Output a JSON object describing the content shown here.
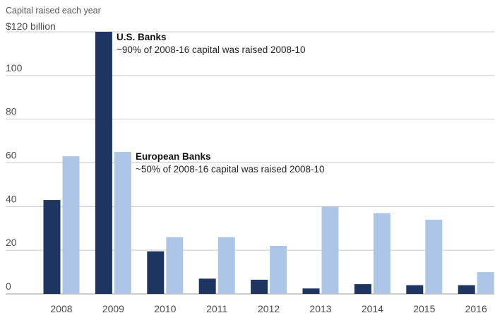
{
  "chart_data": {
    "type": "bar",
    "caption": "Capital raised each year",
    "y_top_label": "$120 billion",
    "categories": [
      "2008",
      "2009",
      "2010",
      "2011",
      "2012",
      "2013",
      "2014",
      "2015",
      "2016"
    ],
    "series": [
      {
        "name": "U.S. Banks",
        "color": "#1f3561",
        "values": [
          43,
          120,
          19.5,
          7,
          6.5,
          2.5,
          4.5,
          4,
          4
        ]
      },
      {
        "name": "European Banks",
        "color": "#adc6e8",
        "values": [
          63,
          65,
          26,
          26,
          22,
          40,
          37,
          34,
          10
        ]
      }
    ],
    "y_ticks": [
      0,
      20,
      40,
      60,
      80,
      100
    ],
    "ylim": [
      0,
      120
    ],
    "grid": true,
    "annotations": [
      {
        "series": "U.S. Banks",
        "title": "U.S. Banks",
        "text": "~90% of 2008-16 capital was raised 2008-10"
      },
      {
        "series": "European Banks",
        "title": "European Banks",
        "text": "~50% of 2008-16 capital was raised 2008-10"
      }
    ]
  }
}
